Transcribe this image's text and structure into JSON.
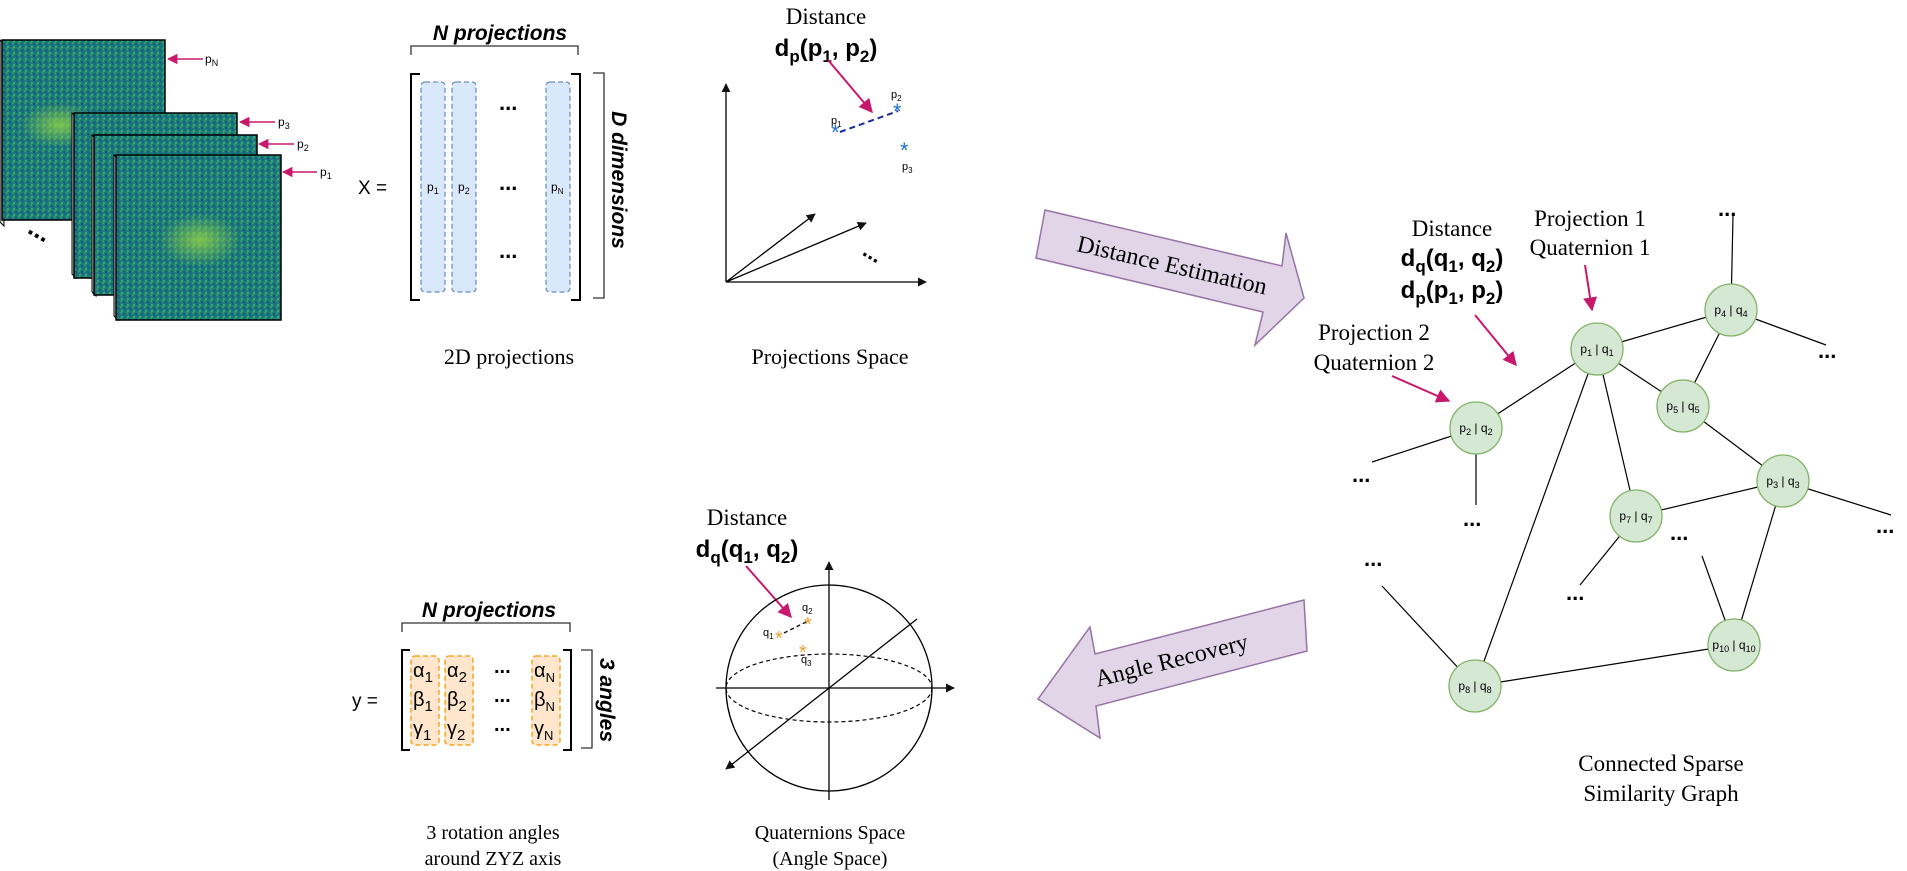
{
  "colors": {
    "magenta": "#c8186e",
    "node_fill": "#d5e8d4",
    "node_stroke": "#82b366",
    "proj_fill": "#dae8fc",
    "proj_stroke": "#6c8ebf",
    "angle_fill": "#ffe6cc",
    "angle_stroke": "#f5a623",
    "banner_fill": "#e1d5e7",
    "banner_stroke": "#9673a6",
    "point_blue": "#1f6fd1",
    "point_orange": "#f0a030"
  },
  "stack": {
    "labels": [
      "p",
      "p",
      "p",
      "p"
    ],
    "subs": [
      "N",
      "3",
      "2",
      "1"
    ],
    "ellipsis": "..."
  },
  "matrix_x": {
    "prefix": "X =",
    "header": "N projections",
    "side": "D dimensions",
    "cols": [
      {
        "l": "p",
        "s": "1"
      },
      {
        "l": "p",
        "s": "2"
      },
      {
        "l": "p",
        "s": "N"
      }
    ],
    "ellipsis": "...",
    "caption": "2D projections"
  },
  "proj_space": {
    "title": "Distance",
    "formula": {
      "d": "d",
      "ds": "p",
      "a": "p",
      "as": "1",
      "b": "p",
      "bs": "2"
    },
    "points": [
      {
        "l": "p",
        "s": "1"
      },
      {
        "l": "p",
        "s": "2"
      },
      {
        "l": "p",
        "s": "3"
      }
    ],
    "marker": "*",
    "ellipsis": "...",
    "caption": "Projections Space"
  },
  "banners": {
    "top": "Distance Estimation",
    "bottom": "Angle Recovery"
  },
  "graph": {
    "ann_distance": "Distance",
    "ann_dq": {
      "d": "d",
      "ds": "q",
      "a": "q",
      "as": "1",
      "b": "q",
      "bs": "2"
    },
    "ann_dp": {
      "d": "d",
      "ds": "p",
      "a": "p",
      "as": "1",
      "b": "p",
      "bs": "2"
    },
    "ann_proj1": [
      "Projection 1",
      "Quaternion 1"
    ],
    "ann_proj2": [
      "Projection 2",
      "Quaternion 2"
    ],
    "nodes": [
      {
        "p": "1",
        "q": "1"
      },
      {
        "p": "2",
        "q": "2"
      },
      {
        "p": "3",
        "q": "3"
      },
      {
        "p": "4",
        "q": "4"
      },
      {
        "p": "5",
        "q": "5"
      },
      {
        "p": "7",
        "q": "7"
      },
      {
        "p": "8",
        "q": "8"
      },
      {
        "p": "10",
        "q": "10"
      }
    ],
    "node_sep": " | ",
    "ellipsis": "...",
    "caption": [
      "Connected Sparse",
      "Similarity Graph"
    ]
  },
  "quat_space": {
    "title": "Distance",
    "formula": {
      "d": "d",
      "ds": "q",
      "a": "q",
      "as": "1",
      "b": "q",
      "bs": "2"
    },
    "points": [
      {
        "l": "q",
        "s": "1"
      },
      {
        "l": "q",
        "s": "2"
      },
      {
        "l": "q",
        "s": "3"
      }
    ],
    "marker": "*",
    "caption": [
      "Quaternions Space",
      "(Angle Space)"
    ]
  },
  "matrix_y": {
    "prefix": "y =",
    "header": "N projections",
    "side": "3 angles",
    "rows": [
      [
        "α",
        "β",
        "γ"
      ]
    ],
    "col_subs": [
      "1",
      "2",
      "N"
    ],
    "ellipsis": "...",
    "caption": [
      "3 rotation angles",
      "around ZYZ axis"
    ]
  }
}
